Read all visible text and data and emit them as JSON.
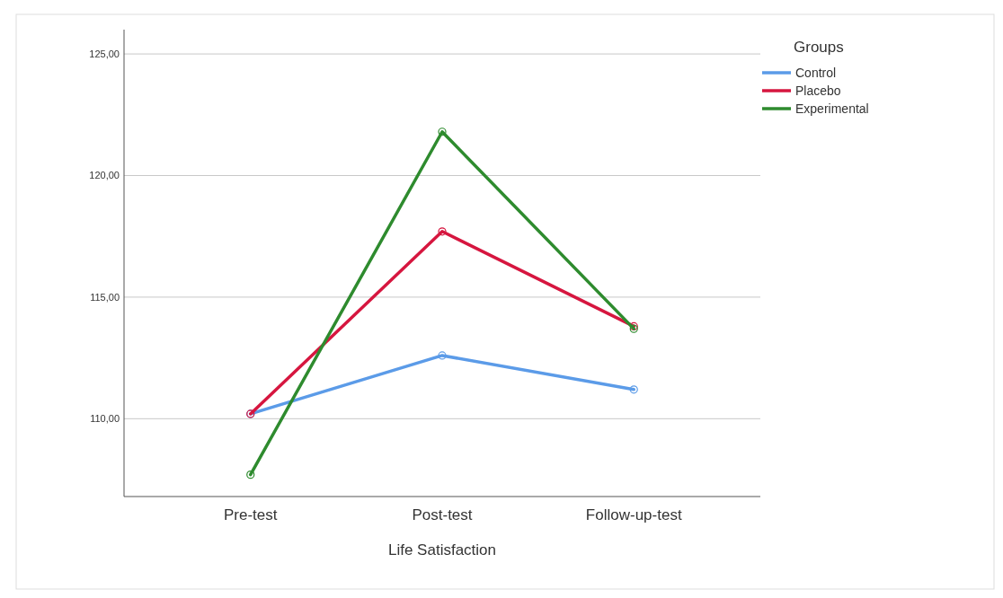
{
  "chart_data": {
    "type": "line",
    "xlabel": "Life Satisfaction",
    "legend_title": "Groups",
    "categories": [
      "Pre-test",
      "Post-test",
      "Follow-up-test"
    ],
    "series": [
      {
        "name": "Control",
        "color": "#5b9be8",
        "values": [
          110.2,
          112.6,
          111.2
        ]
      },
      {
        "name": "Placebo",
        "color": "#d6163f",
        "values": [
          110.2,
          117.7,
          113.8
        ]
      },
      {
        "name": "Experimental",
        "color": "#2e8b2e",
        "values": [
          107.7,
          121.8,
          113.7
        ]
      }
    ],
    "ylim": [
      106.8,
      126
    ],
    "yticks": [
      {
        "value": 110,
        "label": "110,00"
      },
      {
        "value": 115,
        "label": "115,00"
      },
      {
        "value": 120,
        "label": "120,00"
      },
      {
        "value": 125,
        "label": "125,00"
      }
    ],
    "grid": "y",
    "legend": "top right",
    "marker": "circle",
    "line_style": "solid"
  }
}
